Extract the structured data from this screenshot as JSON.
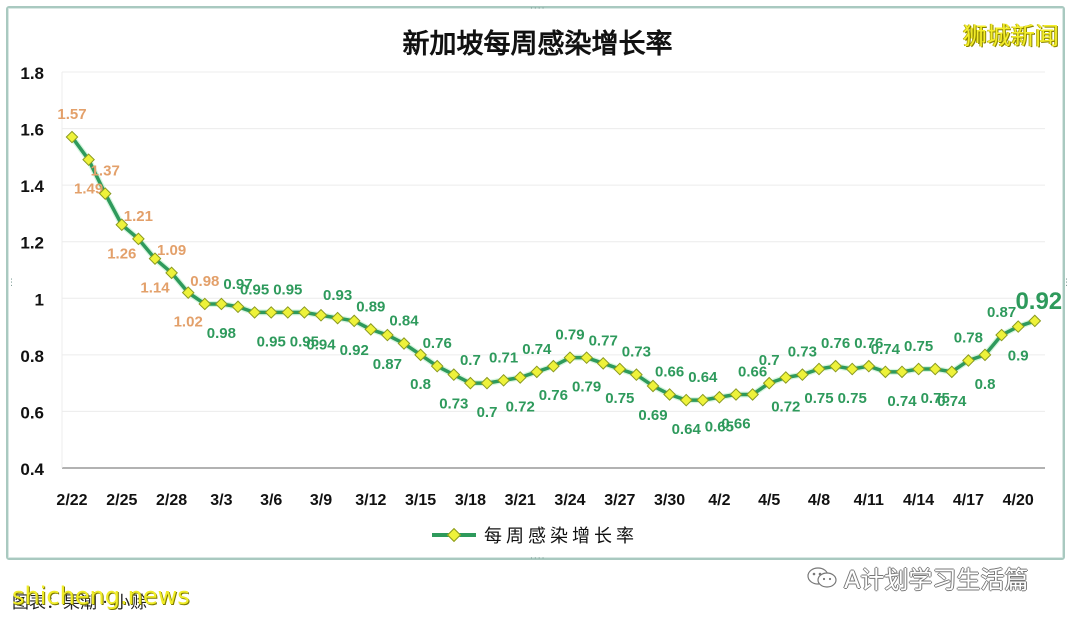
{
  "header": {
    "title": "新加坡每周感染增长率",
    "brand": "狮城新闻"
  },
  "legend": {
    "label": "每周感染增长率"
  },
  "footer": {
    "credit": "图表：果潮 · 小赊",
    "site_watermark": "shicheng.news",
    "wechat_account": "A计划学习生活篇"
  },
  "colors": {
    "line": "#2e9a5c",
    "marker_fill": "#eef23a",
    "marker_stroke": "#8a9a20",
    "label_high": "#e3a06a",
    "label_normal": "#2e9a5c",
    "grid": "#ececec",
    "axis": "#999999"
  },
  "chart_data": {
    "type": "line",
    "title": "新加坡每周感染增长率",
    "xlabel": "",
    "ylabel": "",
    "ylim": [
      0.4,
      1.8
    ],
    "yticks": [
      0.4,
      0.6,
      0.8,
      1,
      1.2,
      1.4,
      1.6,
      1.8
    ],
    "ytick_labels": [
      "0.4",
      "0.6",
      "0.8",
      "1",
      "1.2",
      "1.4",
      "1.6",
      "1.8"
    ],
    "xtick_labels": [
      "2/22",
      "2/25",
      "2/28",
      "3/3",
      "3/6",
      "3/9",
      "3/12",
      "3/15",
      "3/18",
      "3/21",
      "3/24",
      "3/27",
      "3/30",
      "4/2",
      "4/5",
      "4/8",
      "4/11",
      "4/14",
      "4/17",
      "4/20"
    ],
    "xtick_step_days": 3,
    "grid": true,
    "legend_position": "bottom",
    "series": [
      {
        "name": "每周感染增长率",
        "x": [
          "2/22",
          "2/23",
          "2/24",
          "2/25",
          "2/26",
          "2/27",
          "2/28",
          "3/1",
          "3/2",
          "3/3",
          "3/4",
          "3/5",
          "3/6",
          "3/7",
          "3/8",
          "3/9",
          "3/10",
          "3/11",
          "3/12",
          "3/13",
          "3/14",
          "3/15",
          "3/16",
          "3/17",
          "3/18",
          "3/19",
          "3/20",
          "3/21",
          "3/22",
          "3/23",
          "3/24",
          "3/25",
          "3/26",
          "3/27",
          "3/28",
          "3/29",
          "3/30",
          "3/31",
          "4/1",
          "4/2",
          "4/3",
          "4/4",
          "4/5",
          "4/6",
          "4/7",
          "4/8",
          "4/9",
          "4/10",
          "4/11",
          "4/12",
          "4/13",
          "4/14",
          "4/15",
          "4/16",
          "4/17",
          "4/18",
          "4/19",
          "4/20",
          "4/21"
        ],
        "values": [
          1.57,
          1.49,
          1.37,
          1.26,
          1.21,
          1.14,
          1.09,
          1.02,
          0.98,
          0.98,
          0.97,
          0.95,
          0.95,
          0.95,
          0.95,
          0.94,
          0.93,
          0.92,
          0.89,
          0.87,
          0.84,
          0.8,
          0.76,
          0.73,
          0.7,
          0.7,
          0.71,
          0.72,
          0.74,
          0.76,
          0.79,
          0.79,
          0.77,
          0.75,
          0.73,
          0.69,
          0.66,
          0.64,
          0.64,
          0.65,
          0.66,
          0.66,
          0.7,
          0.72,
          0.73,
          0.75,
          0.76,
          0.75,
          0.76,
          0.74,
          0.74,
          0.75,
          0.75,
          0.74,
          0.78,
          0.8,
          0.87,
          0.9,
          0.92
        ],
        "label_above": [
          true,
          false,
          true,
          false,
          true,
          false,
          true,
          false,
          true,
          false,
          true,
          true,
          false,
          true,
          false,
          false,
          true,
          false,
          true,
          false,
          true,
          false,
          true,
          false,
          true,
          false,
          true,
          false,
          true,
          false,
          true,
          false,
          true,
          false,
          true,
          false,
          true,
          false,
          true,
          false,
          false,
          true,
          true,
          false,
          true,
          false,
          true,
          false,
          true,
          true,
          false,
          true,
          false,
          false,
          true,
          false,
          true,
          false,
          true
        ],
        "highlight_last": true,
        "highlight_label": "0.92"
      }
    ]
  }
}
